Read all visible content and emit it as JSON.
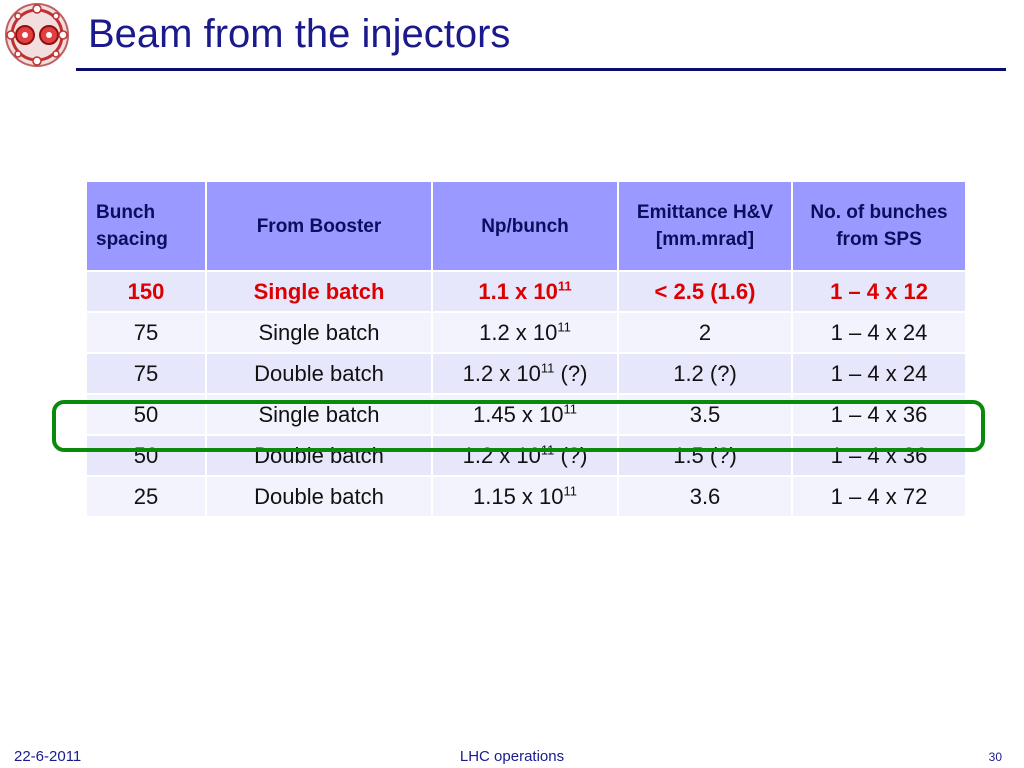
{
  "title": "Beam from the injectors",
  "table": {
    "headers": [
      "Bunch spacing",
      "From Booster",
      "Np/bunch",
      "Emittance H&V [mm.mrad]",
      "No. of bunches from SPS"
    ],
    "rows": [
      {
        "spacing": "150",
        "booster": "Single batch",
        "np_mantissa": "1.1 x 10",
        "np_exp": "11",
        "np_suffix": "",
        "emittance": "< 2.5 (1.6)",
        "bunches": "1 – 4 x 12"
      },
      {
        "spacing": "75",
        "booster": "Single batch",
        "np_mantissa": "1.2 x 10",
        "np_exp": "11",
        "np_suffix": "",
        "emittance": "2",
        "bunches": "1 – 4 x 24"
      },
      {
        "spacing": "75",
        "booster": "Double batch",
        "np_mantissa": "1.2 x 10",
        "np_exp": "11",
        "np_suffix": " (?)",
        "emittance": "1.2 (?)",
        "bunches": "1 – 4 x 24"
      },
      {
        "spacing": "50",
        "booster": "Single batch",
        "np_mantissa": "1.45 x 10",
        "np_exp": "11",
        "np_suffix": "",
        "emittance": "3.5",
        "bunches": "1 – 4 x 36"
      },
      {
        "spacing": "50",
        "booster": "Double batch",
        "np_mantissa": "1.2 x 10",
        "np_exp": "11",
        "np_suffix": " (?)",
        "emittance": "1.5 (?)",
        "bunches": "1 – 4 x 36"
      },
      {
        "spacing": "25",
        "booster": "Double batch",
        "np_mantissa": "1.15 x 10",
        "np_exp": "11",
        "np_suffix": "",
        "emittance": "3.6",
        "bunches": "1 – 4 x 72"
      }
    ]
  },
  "footer": {
    "date": "22-6-2011",
    "center": "LHC operations",
    "page": "30"
  },
  "colors": {
    "title": "#1a1a8c",
    "header_bg": "#9999ff",
    "highlight_text": "#dd0000",
    "highlight_border": "#0a8a0a"
  },
  "icons": {
    "logo": "lhc-magnet-cross-section-logo"
  }
}
